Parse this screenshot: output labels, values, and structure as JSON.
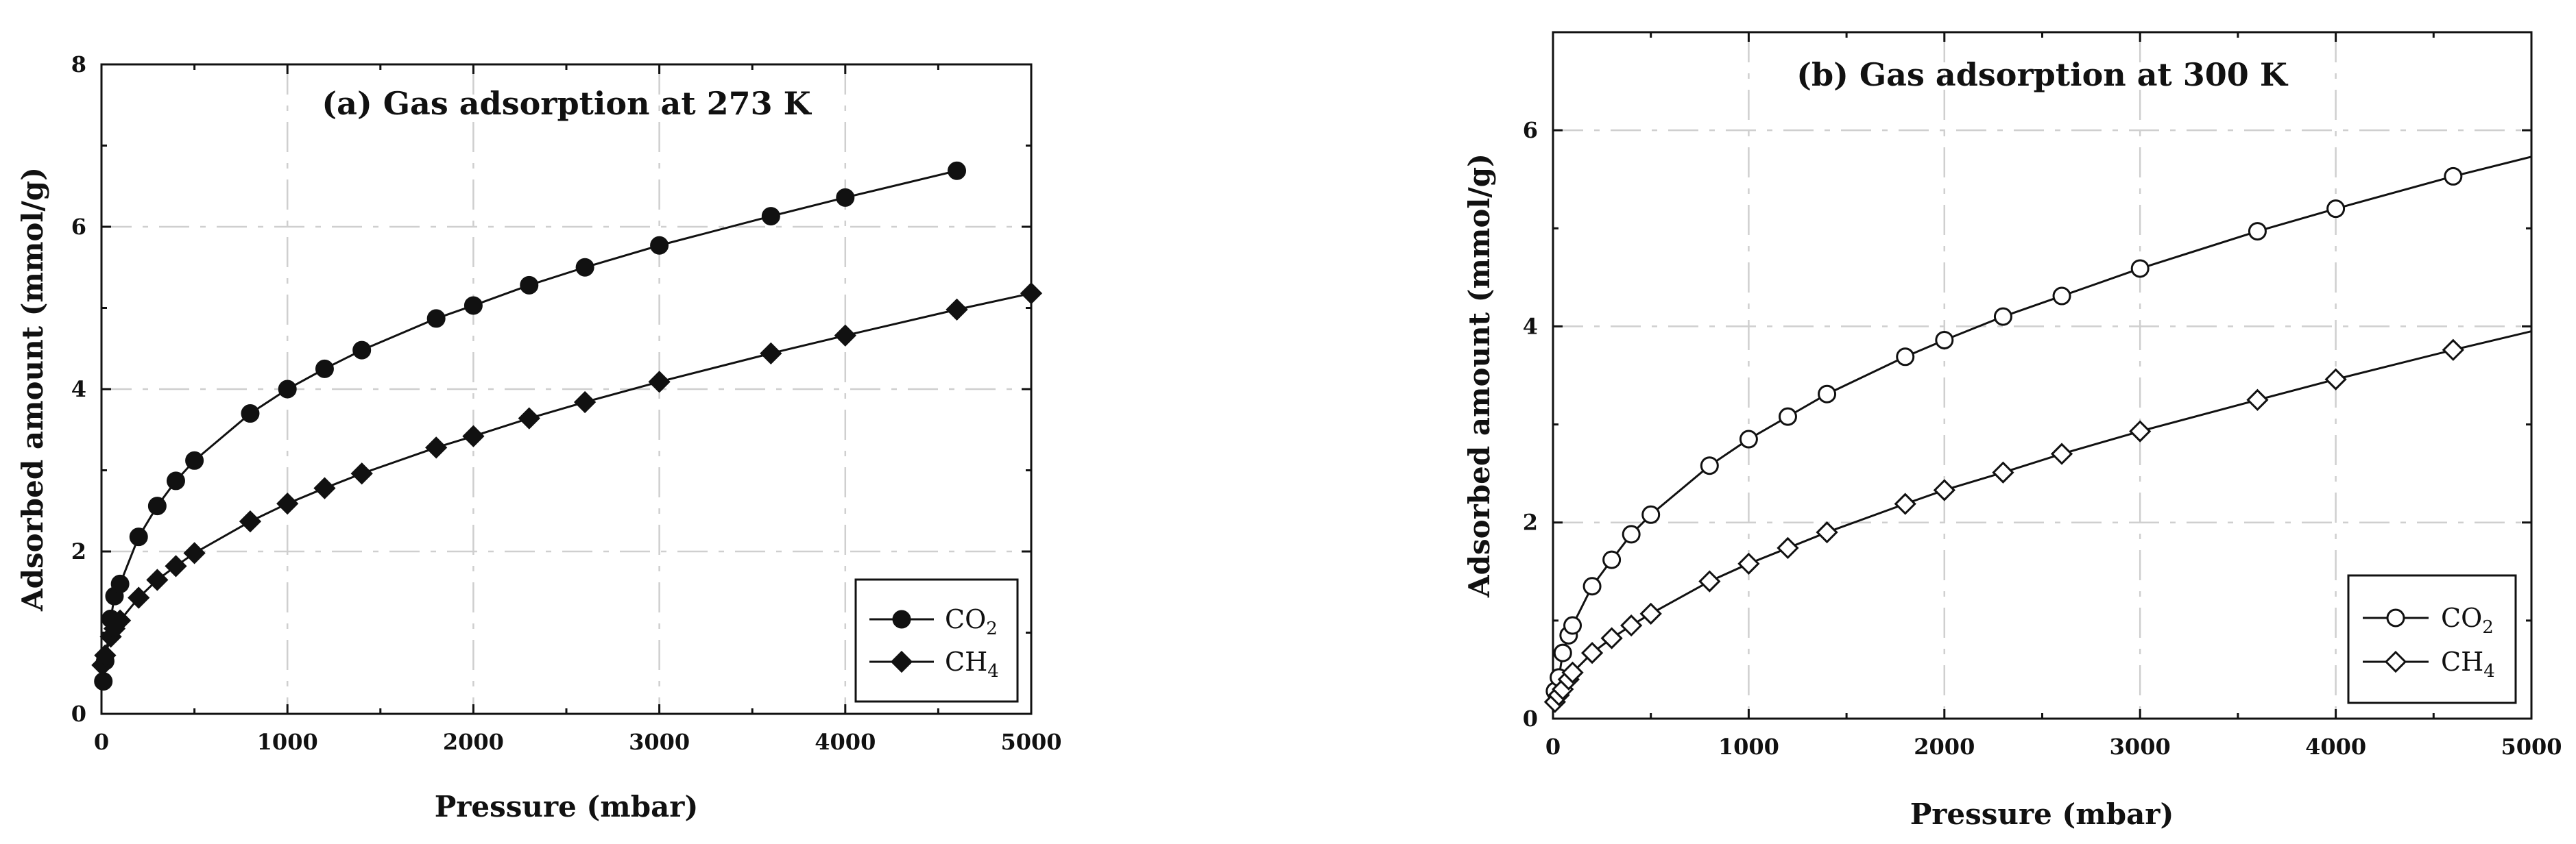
{
  "chart_data": [
    {
      "type": "line",
      "title": "(a) Gas adsorption at 273 K",
      "xlabel": "Pressure (mbar)",
      "ylabel": "Adsorbed amount (mmol/g)",
      "xlim": [
        0,
        5000
      ],
      "ylim": [
        0,
        8
      ],
      "xticks": [
        0,
        1000,
        2000,
        3000,
        4000,
        5000
      ],
      "yticks": [
        0,
        2,
        4,
        6,
        8
      ],
      "grid": true,
      "legend_position": "bottom-right",
      "series": [
        {
          "name": "CO",
          "subscript": "2",
          "marker": "circle",
          "filled": true,
          "x": [
            10,
            20,
            50,
            70,
            100,
            200,
            300,
            400,
            500,
            800,
            1000,
            1200,
            1400,
            1800,
            2000,
            2300,
            2600,
            3000,
            3600,
            4000,
            4600
          ],
          "y": [
            0.4,
            0.65,
            1.17,
            1.45,
            1.6,
            2.18,
            2.56,
            2.87,
            3.12,
            3.7,
            4.0,
            4.25,
            4.48,
            4.87,
            5.03,
            5.28,
            5.5,
            5.77,
            6.13,
            6.36,
            6.69
          ]
        },
        {
          "name": "CH",
          "subscript": "4",
          "marker": "diamond",
          "filled": true,
          "x": [
            5,
            20,
            50,
            70,
            100,
            200,
            300,
            400,
            500,
            800,
            1000,
            1200,
            1400,
            1800,
            2000,
            2300,
            2600,
            3000,
            3600,
            4000,
            4600,
            5000
          ],
          "y": [
            0.6,
            0.72,
            0.95,
            1.05,
            1.15,
            1.43,
            1.65,
            1.82,
            1.98,
            2.37,
            2.59,
            2.78,
            2.96,
            3.28,
            3.42,
            3.64,
            3.84,
            4.09,
            4.44,
            4.66,
            4.98,
            5.18
          ]
        }
      ]
    },
    {
      "type": "line",
      "title": "(b) Gas adsorption at 300 K",
      "xlabel": "Pressure (mbar)",
      "ylabel": "Adsorbed amount (mmol/g)",
      "xlim": [
        0,
        5000
      ],
      "ylim": [
        0,
        7
      ],
      "xticks": [
        0,
        1000,
        2000,
        3000,
        4000,
        5000
      ],
      "yticks": [
        0,
        2,
        4,
        6
      ],
      "grid": true,
      "legend_position": "bottom-right",
      "series": [
        {
          "name": "CO",
          "subscript": "2",
          "marker": "circle",
          "filled": false,
          "x": [
            10,
            30,
            50,
            80,
            100,
            200,
            300,
            400,
            500,
            800,
            1000,
            1200,
            1400,
            1800,
            2000,
            2300,
            2600,
            3000,
            3600,
            4000,
            4600
          ],
          "y": [
            0.28,
            0.42,
            0.67,
            0.85,
            0.95,
            1.35,
            1.62,
            1.88,
            2.08,
            2.58,
            2.85,
            3.08,
            3.31,
            3.69,
            3.86,
            4.1,
            4.31,
            4.59,
            4.97,
            5.2,
            5.53
          ],
          "line_end": [
            5000,
            5.73
          ]
        },
        {
          "name": "CH",
          "subscript": "4",
          "marker": "diamond",
          "filled": false,
          "x": [
            10,
            30,
            50,
            80,
            100,
            200,
            300,
            400,
            500,
            800,
            1000,
            1200,
            1400,
            1800,
            2000,
            2300,
            2600,
            3000,
            3600,
            4000,
            4600
          ],
          "y": [
            0.17,
            0.24,
            0.3,
            0.4,
            0.47,
            0.67,
            0.82,
            0.95,
            1.07,
            1.4,
            1.58,
            1.74,
            1.9,
            2.19,
            2.33,
            2.51,
            2.7,
            2.93,
            3.25,
            3.46,
            3.76
          ],
          "line_end": [
            5000,
            3.95
          ]
        }
      ]
    }
  ]
}
